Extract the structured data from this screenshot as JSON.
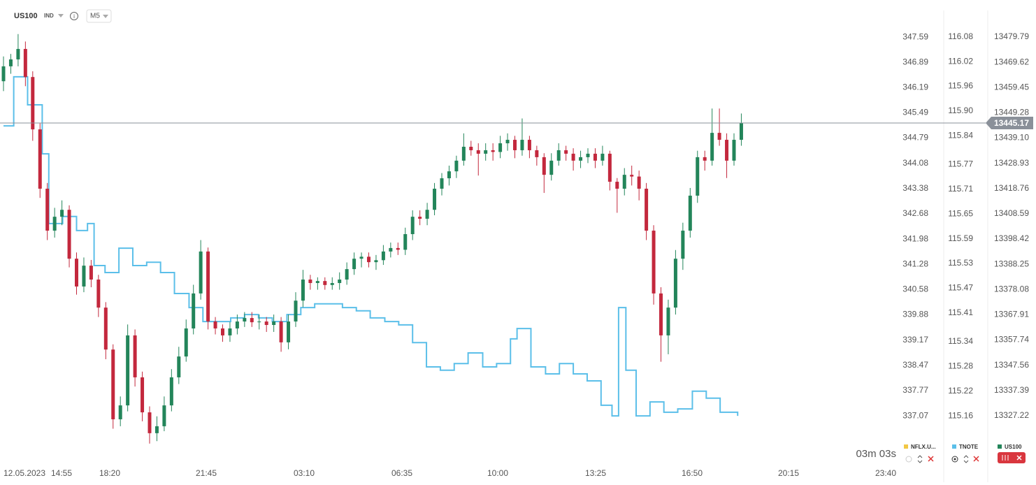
{
  "header": {
    "symbol": "US100",
    "kind": "IND",
    "interval": "M5"
  },
  "countdown": "03m 03s",
  "chart_data": {
    "type": "candlestick",
    "name": "US100",
    "color_up": "#23855a",
    "color_down": "#c3283d",
    "ylim": [
      13308.9,
      13490.5
    ],
    "yticks": [
      13479.79,
      13469.62,
      13459.45,
      13449.28,
      {
        "value": 13439.1,
        "label": "13439.10"
      },
      13428.93,
      13418.76,
      13408.59,
      13398.42,
      13388.25,
      13378.08,
      13367.91,
      13357.74,
      13347.56,
      13337.39,
      13327.22
    ],
    "last_price": 13445.17,
    "x_labels": [
      "12.05.2023",
      "14:55",
      "18:20",
      "21:45",
      "03:10",
      "06:35",
      "10:00",
      "13:25",
      "16:50",
      "20:15",
      "23:40"
    ],
    "candles": [
      [
        13462.0,
        13472.0,
        13458.0,
        13468.0
      ],
      [
        13468.0,
        13473.0,
        13465.0,
        13470.8
      ],
      [
        13470.8,
        13481.0,
        13468.0,
        13475.0
      ],
      [
        13475.0,
        13478.0,
        13460.0,
        13463.7
      ],
      [
        13463.7,
        13466.0,
        13438.0,
        13442.6
      ],
      [
        13442.6,
        13445.0,
        13415.0,
        13418.7
      ],
      [
        13418.7,
        13421.0,
        13398.0,
        13401.8
      ],
      [
        13401.8,
        13411.0,
        13399.0,
        13407.4
      ],
      [
        13407.4,
        13414.0,
        13404.0,
        13410.2
      ],
      [
        13410.2,
        13412.0,
        13387.0,
        13390.5
      ],
      [
        13390.5,
        13393.0,
        13376.0,
        13379.3
      ],
      [
        13379.3,
        13391.0,
        13377.0,
        13387.7
      ],
      [
        13387.7,
        13390.0,
        13379.0,
        13382.1
      ],
      [
        13382.1,
        13384.0,
        13367.0,
        13370.8
      ],
      [
        13370.8,
        13373.0,
        13350.0,
        13353.9
      ],
      [
        13353.9,
        13356.0,
        13322.0,
        13325.8
      ],
      [
        13325.8,
        13335.0,
        13323.0,
        13331.4
      ],
      [
        13331.4,
        13364.0,
        13329.0,
        13359.6
      ],
      [
        13359.6,
        13362.0,
        13339.0,
        13342.7
      ],
      [
        13342.7,
        13345.0,
        13325.0,
        13328.6
      ],
      [
        13328.6,
        13331.0,
        13316.0,
        13320.2
      ],
      [
        13320.2,
        13327.0,
        13317.0,
        13323.0
      ],
      [
        13323.0,
        13335.0,
        13321.0,
        13331.4
      ],
      [
        13331.4,
        13346.0,
        13329.0,
        13342.7
      ],
      [
        13342.7,
        13355.0,
        13340.0,
        13351.1
      ],
      [
        13351.1,
        13366.0,
        13349.0,
        13362.4
      ],
      [
        13362.4,
        13380.0,
        13360.0,
        13376.5
      ],
      [
        13376.5,
        13398.0,
        13374.0,
        13393.4
      ],
      [
        13393.4,
        13395.0,
        13362.0,
        13365.2
      ],
      [
        13365.2,
        13367.0,
        13360.0,
        13362.4
      ],
      [
        13362.4,
        13364.0,
        13357.0,
        13359.6
      ],
      [
        13359.6,
        13365.0,
        13357.0,
        13362.4
      ],
      [
        13362.4,
        13368.0,
        13360.0,
        13365.2
      ],
      [
        13365.2,
        13369.0,
        13363.0,
        13366.6
      ],
      [
        13366.6,
        13369.0,
        13363.0,
        13364.9
      ],
      [
        13364.9,
        13368.0,
        13362.0,
        13365.2
      ],
      [
        13365.2,
        13367.0,
        13361.0,
        13363.8
      ],
      [
        13363.8,
        13368.0,
        13361.0,
        13365.2
      ],
      [
        13365.2,
        13367.0,
        13353.0,
        13356.8
      ],
      [
        13356.8,
        13368.0,
        13354.0,
        13365.2
      ],
      [
        13365.2,
        13377.0,
        13363.0,
        13373.6
      ],
      [
        13373.6,
        13386.0,
        13371.0,
        13382.1
      ],
      [
        13382.1,
        13384.0,
        13378.0,
        13380.7
      ],
      [
        13380.7,
        13383.0,
        13378.0,
        13381.5
      ],
      [
        13381.5,
        13383.0,
        13378.0,
        13379.9
      ],
      [
        13379.9,
        13383.0,
        13378.0,
        13380.7
      ],
      [
        13380.7,
        13385.0,
        13378.0,
        13382.1
      ],
      [
        13382.1,
        13389.0,
        13380.0,
        13386.3
      ],
      [
        13386.3,
        13393.0,
        13384.0,
        13390.5
      ],
      [
        13390.5,
        13393.0,
        13387.0,
        13391.3
      ],
      [
        13391.3,
        13393.0,
        13387.0,
        13389.1
      ],
      [
        13389.1,
        13392.0,
        13386.0,
        13389.9
      ],
      [
        13389.9,
        13396.0,
        13388.0,
        13393.4
      ],
      [
        13393.4,
        13397.0,
        13391.0,
        13394.8
      ],
      [
        13394.8,
        13397.0,
        13392.0,
        13394.1
      ],
      [
        13394.1,
        13403.0,
        13392.0,
        13400.4
      ],
      [
        13400.4,
        13410.0,
        13398.0,
        13407.4
      ],
      [
        13407.4,
        13410.0,
        13404.0,
        13406.6
      ],
      [
        13406.6,
        13413.0,
        13404.0,
        13410.2
      ],
      [
        13410.2,
        13421.0,
        13408.0,
        13418.7
      ],
      [
        13418.7,
        13425.0,
        13416.0,
        13422.9
      ],
      [
        13422.9,
        13428.0,
        13420.0,
        13425.7
      ],
      [
        13425.7,
        13432.0,
        13423.0,
        13430.0
      ],
      [
        13430.0,
        13441.0,
        13428.0,
        13435.6
      ],
      [
        13435.6,
        13438.0,
        13432.0,
        13434.2
      ],
      [
        13434.2,
        13437.0,
        13424.0,
        13432.8
      ],
      [
        13432.8,
        13437.0,
        13430.0,
        13434.2
      ],
      [
        13434.2,
        13437.0,
        13430.0,
        13433.5
      ],
      [
        13433.5,
        13440.0,
        13431.0,
        13437.0
      ],
      [
        13437.0,
        13441.0,
        13434.0,
        13438.4
      ],
      [
        13438.4,
        13440.0,
        13431.0,
        13434.2
      ],
      [
        13434.2,
        13447.0,
        13432.0,
        13438.4
      ],
      [
        13438.4,
        13440.0,
        13431.0,
        13434.2
      ],
      [
        13434.2,
        13436.0,
        13428.0,
        13431.4
      ],
      [
        13431.4,
        13433.0,
        13417.0,
        13424.3
      ],
      [
        13424.3,
        13433.0,
        13422.0,
        13430.0
      ],
      [
        13430.0,
        13437.0,
        13428.0,
        13434.2
      ],
      [
        13434.2,
        13436.0,
        13430.0,
        13432.8
      ],
      [
        13432.8,
        13435.0,
        13426.0,
        13430.0
      ],
      [
        13430.0,
        13434.0,
        13427.0,
        13431.4
      ],
      [
        13431.4,
        13435.0,
        13429.0,
        13432.8
      ],
      [
        13432.8,
        13435.0,
        13427.0,
        13430.0
      ],
      [
        13430.0,
        13436.0,
        13428.0,
        13432.8
      ],
      [
        13432.8,
        13434.0,
        13418.0,
        13421.5
      ],
      [
        13421.5,
        13423.0,
        13409.0,
        13418.7
      ],
      [
        13418.7,
        13427.0,
        13416.0,
        13424.3
      ],
      [
        13424.3,
        13428.0,
        13420.0,
        13423.6
      ],
      [
        13423.6,
        13426.0,
        13414.0,
        13418.7
      ],
      [
        13418.7,
        13421.0,
        13398.0,
        13401.8
      ],
      [
        13401.8,
        13404.0,
        13372.0,
        13376.5
      ],
      [
        13376.5,
        13379.0,
        13349.0,
        13359.6
      ],
      [
        13359.6,
        13374.0,
        13352.0,
        13370.8
      ],
      [
        13370.8,
        13394.0,
        13368.0,
        13390.5
      ],
      [
        13390.5,
        13405.0,
        13386.0,
        13401.8
      ],
      [
        13401.8,
        13419.0,
        13399.0,
        13415.9
      ],
      [
        13415.9,
        13434.0,
        13413.0,
        13431.4
      ],
      [
        13431.4,
        13434.0,
        13426.0,
        13430.0
      ],
      [
        13430.0,
        13451.0,
        13428.0,
        13441.2
      ],
      [
        13441.2,
        13451.0,
        13436.0,
        13438.4
      ],
      [
        13438.4,
        13441.0,
        13423.0,
        13430.0
      ],
      [
        13430.0,
        13441.0,
        13428.0,
        13438.4
      ],
      [
        13438.4,
        13449.0,
        13436.0,
        13445.17
      ]
    ],
    "overlays": [
      {
        "name": "NFLX.U...",
        "color": "#f2c744",
        "ylim": [
          335.81,
          348.33
        ],
        "yticks": [
          347.59,
          346.89,
          346.19,
          345.49,
          344.79,
          344.08,
          343.38,
          342.68,
          341.98,
          341.28,
          340.58,
          339.88,
          339.17,
          338.47,
          337.77,
          337.07
        ]
      },
      {
        "name": "TNOTE",
        "color": "#5bbfe9",
        "ylim": [
          115.05,
          116.144
        ],
        "yticks": [
          116.08,
          116.02,
          115.96,
          {
            "value": 115.9,
            "label": "115.90"
          },
          115.84,
          115.77,
          115.71,
          115.65,
          115.59,
          115.53,
          115.47,
          115.41,
          115.34,
          115.28,
          115.22,
          115.16
        ],
        "x": [
          0,
          1.4,
          3.3,
          5.3,
          6.2,
          8.1,
          10,
          11.5,
          12.4,
          13.9,
          15.8,
          17.7,
          19.6,
          21.5,
          23.4,
          25.4,
          27.3,
          29.2,
          31.1,
          33,
          34.9,
          36.8,
          38.8,
          40.7,
          42.6,
          44.5,
          46.4,
          48.3,
          50.2,
          52.2,
          54.1,
          56,
          57.9,
          59.8,
          61.7,
          63.6,
          65.6,
          67.5,
          69.4,
          70.3,
          72.2,
          74.2,
          76.1,
          78,
          79.9,
          81.8,
          83.3,
          84.2,
          85.2,
          86.6,
          88.5,
          90.4,
          92.3,
          94.3,
          96.2,
          98.1,
          100.5
        ],
        "values": [
          115.864,
          115.983,
          115.915,
          115.796,
          115.627,
          115.644,
          115.61,
          115.627,
          115.525,
          115.508,
          115.567,
          115.525,
          115.533,
          115.508,
          115.457,
          115.423,
          115.389,
          115.389,
          115.398,
          115.406,
          115.398,
          115.389,
          115.406,
          115.423,
          115.432,
          115.432,
          115.423,
          115.415,
          115.398,
          115.389,
          115.381,
          115.338,
          115.279,
          115.271,
          115.287,
          115.313,
          115.279,
          115.287,
          115.347,
          115.372,
          115.279,
          115.262,
          115.287,
          115.262,
          115.245,
          115.186,
          115.16,
          115.423,
          115.271,
          115.16,
          115.194,
          115.169,
          115.177,
          115.22,
          115.203,
          115.169,
          115.16
        ]
      }
    ]
  }
}
